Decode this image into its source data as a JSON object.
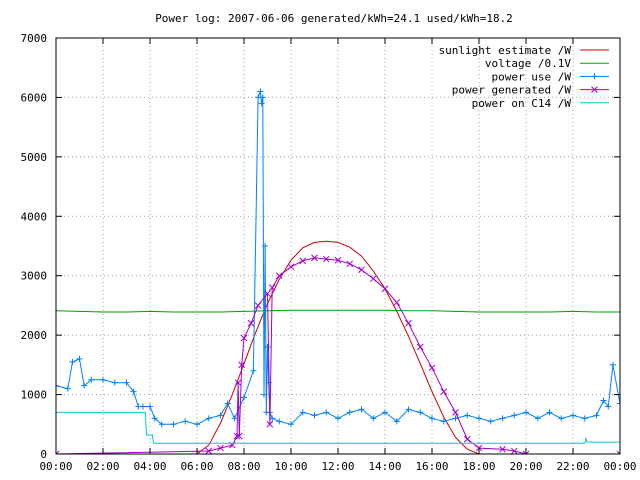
{
  "chart_data": {
    "type": "line",
    "title": "Power log: 2007-06-06 generated/kWh=24.1 used/kWh=18.2",
    "xlabel": "",
    "ylabel": "",
    "xlim": [
      0,
      24
    ],
    "ylim": [
      0,
      7000
    ],
    "x_ticks": [
      0,
      2,
      4,
      6,
      8,
      10,
      12,
      14,
      16,
      18,
      20,
      22,
      24
    ],
    "x_tick_labels": [
      "00:00",
      "02:00",
      "04:00",
      "06:00",
      "08:00",
      "10:00",
      "12:00",
      "14:00",
      "16:00",
      "18:00",
      "20:00",
      "22:00",
      "00:00"
    ],
    "y_ticks": [
      0,
      1000,
      2000,
      3000,
      4000,
      5000,
      6000,
      7000
    ],
    "y_tick_labels": [
      "0",
      "1000",
      "2000",
      "3000",
      "4000",
      "5000",
      "6000",
      "7000"
    ],
    "grid": true,
    "legend_position": "top-right",
    "series": [
      {
        "name": "sunlight estimate /W",
        "color": "#cc0000",
        "marker": "none",
        "x": [
          0,
          6,
          6.5,
          7,
          7.5,
          8,
          8.5,
          9,
          9.5,
          10,
          10.5,
          11,
          11.5,
          12,
          12.5,
          13,
          13.5,
          14,
          14.5,
          15,
          15.5,
          16,
          16.5,
          17,
          17.5,
          18,
          24
        ],
        "y": [
          0,
          0,
          150,
          520,
          1000,
          1520,
          2050,
          2530,
          2940,
          3260,
          3470,
          3560,
          3580,
          3560,
          3480,
          3330,
          3080,
          2780,
          2400,
          1980,
          1520,
          1050,
          620,
          280,
          80,
          0,
          0
        ]
      },
      {
        "name": "voltage /0.1V",
        "color": "#00a000",
        "marker": "none",
        "x": [
          0,
          1,
          2,
          3,
          4,
          5,
          6,
          7,
          8,
          9,
          10,
          11,
          12,
          13,
          14,
          15,
          16,
          17,
          18,
          19,
          20,
          21,
          22,
          23,
          24
        ],
        "y": [
          2410,
          2400,
          2390,
          2390,
          2400,
          2390,
          2390,
          2390,
          2400,
          2410,
          2420,
          2420,
          2420,
          2420,
          2420,
          2410,
          2410,
          2400,
          2390,
          2390,
          2390,
          2390,
          2400,
          2390,
          2390
        ]
      },
      {
        "name": "power use /W",
        "color": "#0080ff",
        "marker": "plus",
        "x": [
          0,
          0.5,
          0.7,
          1.0,
          1.2,
          1.5,
          2.0,
          2.5,
          3.0,
          3.3,
          3.5,
          3.7,
          4.0,
          4.2,
          4.5,
          5.0,
          5.5,
          6.0,
          6.5,
          7.0,
          7.3,
          7.6,
          8.0,
          8.4,
          8.6,
          8.7,
          8.75,
          8.8,
          8.85,
          8.9,
          8.95,
          9.0,
          9.05,
          9.1,
          9.2,
          9.5,
          10.0,
          10.5,
          11.0,
          11.5,
          12.0,
          12.5,
          13.0,
          13.5,
          14.0,
          14.5,
          15.0,
          15.5,
          16.0,
          16.5,
          17.0,
          17.5,
          18.0,
          18.5,
          19.0,
          19.5,
          20.0,
          20.5,
          21.0,
          21.5,
          22.0,
          22.5,
          23.0,
          23.3,
          23.5,
          23.7,
          24.0
        ],
        "y": [
          1150,
          1100,
          1550,
          1600,
          1150,
          1250,
          1250,
          1200,
          1200,
          1050,
          800,
          800,
          800,
          600,
          500,
          500,
          550,
          500,
          600,
          650,
          850,
          600,
          950,
          1400,
          6000,
          6100,
          5900,
          6000,
          1000,
          3500,
          700,
          1800,
          1200,
          700,
          600,
          550,
          500,
          700,
          650,
          700,
          600,
          700,
          750,
          600,
          700,
          550,
          750,
          700,
          600,
          550,
          600,
          650,
          600,
          550,
          600,
          650,
          700,
          600,
          700,
          600,
          650,
          600,
          650,
          900,
          800,
          1500,
          850
        ]
      },
      {
        "name": "power generated /W",
        "color": "#a000d0",
        "marker": "cross",
        "x": [
          0,
          6.5,
          7.0,
          7.5,
          7.7,
          7.75,
          7.8,
          7.9,
          8.0,
          8.3,
          8.6,
          9.0,
          9.1,
          9.2,
          9.5,
          10.0,
          10.5,
          11.0,
          11.5,
          12.0,
          12.5,
          13.0,
          13.5,
          14.0,
          14.5,
          15.0,
          15.5,
          16.0,
          16.5,
          17.0,
          17.5,
          18.0,
          19.0,
          19.5,
          20.0,
          24.0
        ],
        "y": [
          0,
          50,
          100,
          150,
          300,
          1200,
          300,
          1500,
          1950,
          2200,
          2500,
          2700,
          500,
          2800,
          3000,
          3150,
          3250,
          3300,
          3280,
          3260,
          3200,
          3100,
          2950,
          2780,
          2550,
          2200,
          1800,
          1450,
          1050,
          700,
          250,
          100,
          80,
          50,
          0,
          0
        ]
      },
      {
        "name": "power on C14 /W",
        "color": "#00cccc",
        "marker": "none",
        "x": [
          0,
          3.8,
          3.85,
          4.1,
          4.15,
          22.5,
          22.55,
          22.6,
          24
        ],
        "y": [
          700,
          700,
          320,
          320,
          180,
          180,
          260,
          200,
          200
        ]
      }
    ]
  }
}
